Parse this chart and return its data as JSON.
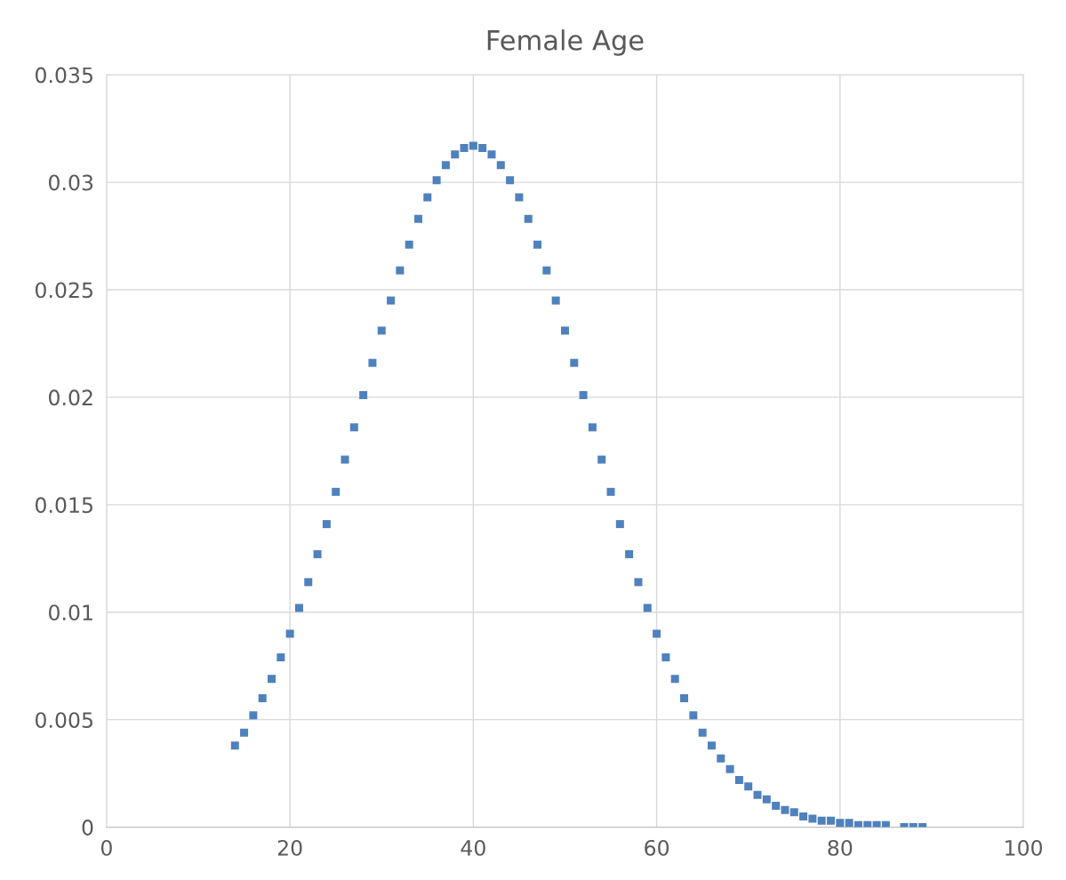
{
  "chart_data": {
    "type": "scatter",
    "title": "Female Age",
    "x": [
      14,
      15,
      16,
      17,
      18,
      19,
      20,
      21,
      22,
      23,
      24,
      25,
      26,
      27,
      28,
      29,
      30,
      31,
      32,
      33,
      34,
      35,
      36,
      37,
      38,
      39,
      40,
      41,
      42,
      43,
      44,
      45,
      46,
      47,
      48,
      49,
      50,
      51,
      52,
      53,
      54,
      55,
      56,
      57,
      58,
      59,
      60,
      61,
      62,
      63,
      64,
      65,
      66,
      67,
      68,
      69,
      70,
      71,
      72,
      73,
      74,
      75,
      76,
      77,
      78,
      79,
      80,
      81,
      82,
      83,
      84,
      85,
      87,
      88,
      89
    ],
    "series": [
      {
        "color": "#4f81bd",
        "values": [
          0.0038,
          0.0044,
          0.0052,
          0.006,
          0.0069,
          0.0079,
          0.009,
          0.0102,
          0.0114,
          0.0127,
          0.0141,
          0.0156,
          0.0171,
          0.0186,
          0.0201,
          0.0216,
          0.0231,
          0.0245,
          0.0259,
          0.0271,
          0.0283,
          0.0293,
          0.0301,
          0.0308,
          0.0313,
          0.0316,
          0.0317,
          0.0316,
          0.0313,
          0.0308,
          0.0301,
          0.0293,
          0.0283,
          0.0271,
          0.0259,
          0.0245,
          0.0231,
          0.0216,
          0.0201,
          0.0186,
          0.0171,
          0.0156,
          0.0141,
          0.0127,
          0.0114,
          0.0102,
          0.009,
          0.0079,
          0.0069,
          0.006,
          0.0052,
          0.0044,
          0.0038,
          0.0032,
          0.0027,
          0.0022,
          0.0019,
          0.0015,
          0.0013,
          0.001,
          0.0008,
          0.0007,
          0.0005,
          0.0004,
          0.0003,
          0.0003,
          0.0002,
          0.0002,
          0.0001,
          0.0001,
          0.0001,
          0.0001,
          0,
          0,
          0
        ]
      }
    ],
    "xlim": [
      0,
      100
    ],
    "xticks": [
      0,
      20,
      40,
      60,
      80,
      100
    ],
    "ylim": [
      0,
      0.035
    ],
    "yticks": [
      0,
      0.005,
      0.01,
      0.015,
      0.02,
      0.025,
      0.03,
      0.035
    ],
    "grid": true,
    "marker": "square"
  }
}
